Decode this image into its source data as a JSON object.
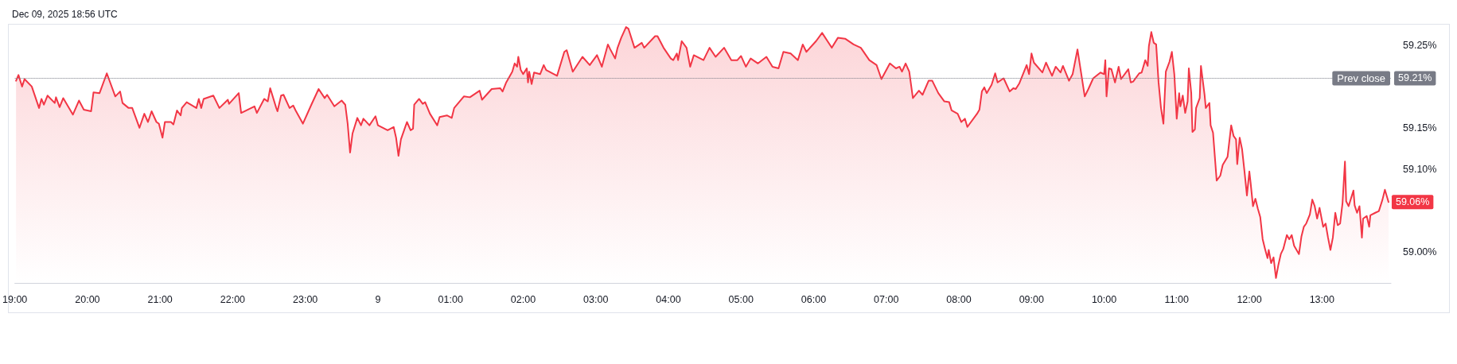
{
  "chart_data": {
    "type": "area",
    "title": "Dec 09, 2025 18:56 UTC",
    "color": "#f23645",
    "x": [
      "2025-12-08T19:01",
      "2025-12-08T19:03",
      "2025-12-08T19:06",
      "2025-12-08T19:08",
      "2025-12-08T19:14",
      "2025-12-08T19:20",
      "2025-12-08T19:22",
      "2025-12-08T19:24",
      "2025-12-08T19:27",
      "2025-12-08T19:33",
      "2025-12-08T19:34",
      "2025-12-08T19:37",
      "2025-12-08T19:40",
      "2025-12-08T19:48",
      "2025-12-08T19:53",
      "2025-12-08T19:57",
      "2025-12-08T20:03",
      "2025-12-08T20:05",
      "2025-12-08T20:10",
      "2025-12-08T20:16",
      "2025-12-08T20:19",
      "2025-12-08T20:23",
      "2025-12-08T20:27",
      "2025-12-08T20:29",
      "2025-12-08T20:34",
      "2025-12-08T20:37",
      "2025-12-08T20:43",
      "2025-12-08T20:47",
      "2025-12-08T20:50",
      "2025-12-08T20:53",
      "2025-12-08T20:57",
      "2025-12-08T20:59",
      "2025-12-08T21:02",
      "2025-12-08T21:04",
      "2025-12-08T21:09",
      "2025-12-08T21:11",
      "2025-12-08T21:14",
      "2025-12-08T21:17",
      "2025-12-08T21:18",
      "2025-12-08T21:22",
      "2025-12-08T21:30",
      "2025-12-08T21:32",
      "2025-12-08T21:34",
      "2025-12-08T21:36",
      "2025-12-08T21:44",
      "2025-12-08T21:49",
      "2025-12-08T21:56",
      "2025-12-08T21:57",
      "2025-12-08T22:05",
      "2025-12-08T22:07",
      "2025-12-08T22:18",
      "2025-12-08T22:20",
      "2025-12-08T22:26",
      "2025-12-08T22:29",
      "2025-12-08T22:31",
      "2025-12-08T22:36",
      "2025-12-08T22:37",
      "2025-12-08T22:40",
      "2025-12-08T22:42",
      "2025-12-08T22:47",
      "2025-12-08T22:50",
      "2025-12-08T22:52",
      "2025-12-08T22:58",
      "2025-12-08T23:05",
      "2025-12-08T23:11",
      "2025-12-08T23:16",
      "2025-12-08T23:18",
      "2025-12-08T23:24",
      "2025-12-08T23:30",
      "2025-12-08T23:33",
      "2025-12-08T23:35",
      "2025-12-08T23:37",
      "2025-12-08T23:39",
      "2025-12-08T23:43",
      "2025-12-08T23:46",
      "2025-12-08T23:48",
      "2025-12-08T23:53",
      "2025-12-08T23:58",
      "2025-12-09T00:00",
      "2025-12-09T00:08",
      "2025-12-09T00:13",
      "2025-12-09T00:15",
      "2025-12-09T00:17",
      "2025-12-09T00:19",
      "2025-12-09T00:24",
      "2025-12-09T00:27",
      "2025-12-09T00:29",
      "2025-12-09T00:30",
      "2025-12-09T00:34",
      "2025-12-09T00:37",
      "2025-12-09T00:39",
      "2025-12-09T00:43",
      "2025-12-09T00:49",
      "2025-12-09T00:51",
      "2025-12-09T00:57",
      "2025-12-09T01:01",
      "2025-12-09T01:03",
      "2025-12-09T01:11",
      "2025-12-09T01:16",
      "2025-12-09T01:24",
      "2025-12-09T01:26",
      "2025-12-09T01:34",
      "2025-12-09T01:41",
      "2025-12-09T01:43",
      "2025-12-09T01:46",
      "2025-12-09T01:51",
      "2025-12-09T01:53",
      "2025-12-09T01:55",
      "2025-12-09T01:56",
      "2025-12-09T01:58",
      "2025-12-09T02:00",
      "2025-12-09T02:03",
      "2025-12-09T02:04",
      "2025-12-09T02:05",
      "2025-12-09T02:07",
      "2025-12-09T02:09",
      "2025-12-09T02:14",
      "2025-12-09T02:17",
      "2025-12-09T02:19",
      "2025-12-09T02:28",
      "2025-12-09T02:34",
      "2025-12-09T02:36",
      "2025-12-09T02:41",
      "2025-12-09T02:49",
      "2025-12-09T02:55",
      "2025-12-09T03:01",
      "2025-12-09T03:05",
      "2025-12-09T03:10",
      "2025-12-09T03:12",
      "2025-12-09T03:16",
      "2025-12-09T03:18",
      "2025-12-09T03:21",
      "2025-12-09T03:25",
      "2025-12-09T03:27",
      "2025-12-09T03:32",
      "2025-12-09T03:38",
      "2025-12-09T03:40",
      "2025-12-09T03:49",
      "2025-12-09T03:51",
      "2025-12-09T03:56",
      "2025-12-09T04:02",
      "2025-12-09T04:04",
      "2025-12-09T04:07",
      "2025-12-09T04:08",
      "2025-12-09T04:11",
      "2025-12-09T04:15",
      "2025-12-09T04:18",
      "2025-12-09T04:21",
      "2025-12-09T04:29",
      "2025-12-09T04:34",
      "2025-12-09T04:39",
      "2025-12-09T04:46",
      "2025-12-09T04:52",
      "2025-12-09T04:57",
      "2025-12-09T05:00",
      "2025-12-09T05:04",
      "2025-12-09T05:08",
      "2025-12-09T05:14",
      "2025-12-09T05:21",
      "2025-12-09T05:26",
      "2025-12-09T05:31",
      "2025-12-09T05:35",
      "2025-12-09T05:41",
      "2025-12-09T05:47",
      "2025-12-09T05:51",
      "2025-12-09T05:54",
      "2025-12-09T06:02",
      "2025-12-09T06:07",
      "2025-12-09T06:15",
      "2025-12-09T06:20",
      "2025-12-09T06:26",
      "2025-12-09T06:33",
      "2025-12-09T06:39",
      "2025-12-09T06:46",
      "2025-12-09T06:52",
      "2025-12-09T06:56",
      "2025-12-09T07:03",
      "2025-12-09T07:08",
      "2025-12-09T07:11",
      "2025-12-09T07:13",
      "2025-12-09T07:16",
      "2025-12-09T07:19",
      "2025-12-09T07:22",
      "2025-12-09T07:27",
      "2025-12-09T07:30",
      "2025-12-09T07:35",
      "2025-12-09T07:38",
      "2025-12-09T07:43",
      "2025-12-09T07:48",
      "2025-12-09T07:52",
      "2025-12-09T07:54",
      "2025-12-09T07:59",
      "2025-12-09T08:02",
      "2025-12-09T08:05",
      "2025-12-09T08:07",
      "2025-12-09T08:15",
      "2025-12-09T08:17",
      "2025-12-09T08:19",
      "2025-12-09T08:21",
      "2025-12-09T08:23",
      "2025-12-09T08:27",
      "2025-12-09T08:30",
      "2025-12-09T08:32",
      "2025-12-09T08:37",
      "2025-12-09T08:42",
      "2025-12-09T08:45",
      "2025-12-09T08:47",
      "2025-12-09T08:50",
      "2025-12-09T08:56",
      "2025-12-09T08:58",
      "2025-12-09T09:00",
      "2025-12-09T09:02",
      "2025-12-09T09:09",
      "2025-12-09T09:12",
      "2025-12-09T09:17",
      "2025-12-09T09:20",
      "2025-12-09T09:24",
      "2025-12-09T09:26",
      "2025-12-09T09:31",
      "2025-12-09T09:34",
      "2025-12-09T09:38",
      "2025-12-09T09:40",
      "2025-12-09T09:44",
      "2025-12-09T09:47",
      "2025-12-09T09:51",
      "2025-12-09T09:57",
      "2025-12-09T10:00",
      "2025-12-09T10:01",
      "2025-12-09T10:02",
      "2025-12-09T10:04",
      "2025-12-09T10:06",
      "2025-12-09T10:09",
      "2025-12-09T10:12",
      "2025-12-09T10:14",
      "2025-12-09T10:20",
      "2025-12-09T10:22",
      "2025-12-09T10:24",
      "2025-12-09T10:29",
      "2025-12-09T10:31",
      "2025-12-09T10:34",
      "2025-12-09T10:36",
      "2025-12-09T10:37",
      "2025-12-09T10:39",
      "2025-12-09T10:41",
      "2025-12-09T10:43",
      "2025-12-09T10:45",
      "2025-12-09T10:47",
      "2025-12-09T10:49",
      "2025-12-09T10:51",
      "2025-12-09T10:54",
      "2025-12-09T10:56",
      "2025-12-09T10:58",
      "2025-12-09T11:00",
      "2025-12-09T11:02",
      "2025-12-09T11:03",
      "2025-12-09T11:05",
      "2025-12-09T11:07",
      "2025-12-09T11:09",
      "2025-12-09T11:10",
      "2025-12-09T11:12",
      "2025-12-09T11:13",
      "2025-12-09T11:15",
      "2025-12-09T11:16",
      "2025-12-09T11:19",
      "2025-12-09T11:20",
      "2025-12-09T11:23",
      "2025-12-09T11:24",
      "2025-12-09T11:27",
      "2025-12-09T11:28",
      "2025-12-09T11:30",
      "2025-12-09T11:33",
      "2025-12-09T11:36",
      "2025-12-09T11:38",
      "2025-12-09T11:42",
      "2025-12-09T11:45",
      "2025-12-09T11:47",
      "2025-12-09T11:49",
      "2025-12-09T11:50",
      "2025-12-09T11:52",
      "2025-12-09T11:54",
      "2025-12-09T11:56",
      "2025-12-09T11:58",
      "2025-12-09T12:00",
      "2025-12-09T12:01",
      "2025-12-09T12:03",
      "2025-12-09T12:05",
      "2025-12-09T12:07",
      "2025-12-09T12:09",
      "2025-12-09T12:11",
      "2025-12-09T12:13",
      "2025-12-09T12:15",
      "2025-12-09T12:16",
      "2025-12-09T12:18",
      "2025-12-09T12:20",
      "2025-12-09T12:22",
      "2025-12-09T12:24",
      "2025-12-09T12:26",
      "2025-12-09T12:28",
      "2025-12-09T12:31",
      "2025-12-09T12:33",
      "2025-12-09T12:35",
      "2025-12-09T12:37",
      "2025-12-09T12:41",
      "2025-12-09T12:43",
      "2025-12-09T12:45",
      "2025-12-09T12:47",
      "2025-12-09T12:50",
      "2025-12-09T12:52",
      "2025-12-09T12:54",
      "2025-12-09T12:56",
      "2025-12-09T12:58",
      "2025-12-09T13:01",
      "2025-12-09T13:03",
      "2025-12-09T13:05",
      "2025-12-09T13:07",
      "2025-12-09T13:09",
      "2025-12-09T13:11",
      "2025-12-09T13:13",
      "2025-12-09T13:15",
      "2025-12-09T13:17",
      "2025-12-09T13:19",
      "2025-12-09T13:20",
      "2025-12-09T13:22",
      "2025-12-09T13:26",
      "2025-12-09T13:27",
      "2025-12-09T13:29",
      "2025-12-09T13:31",
      "2025-12-09T13:33",
      "2025-12-09T13:34",
      "2025-12-09T13:37",
      "2025-12-09T13:39",
      "2025-12-09T13:40",
      "2025-12-09T13:44",
      "2025-12-09T13:47",
      "2025-12-09T13:50",
      "2025-12-09T13:52",
      "2025-12-09T13:55"
    ],
    "values": [
      59.207,
      59.214,
      59.2,
      59.209,
      59.2,
      59.174,
      59.185,
      59.178,
      59.189,
      59.18,
      59.187,
      59.175,
      59.186,
      59.166,
      59.183,
      59.172,
      59.17,
      59.193,
      59.192,
      59.216,
      59.204,
      59.188,
      59.194,
      59.18,
      59.174,
      59.174,
      59.15,
      59.167,
      59.157,
      59.17,
      59.157,
      59.155,
      59.138,
      59.157,
      59.157,
      59.154,
      59.171,
      59.165,
      59.174,
      59.181,
      59.174,
      59.185,
      59.174,
      59.185,
      59.189,
      59.174,
      59.184,
      59.179,
      59.192,
      59.168,
      59.176,
      59.168,
      59.185,
      59.182,
      59.198,
      59.174,
      59.17,
      59.189,
      59.19,
      59.174,
      59.177,
      59.171,
      59.155,
      59.178,
      59.197,
      59.186,
      59.19,
      59.176,
      59.183,
      59.178,
      59.155,
      59.12,
      59.143,
      59.162,
      59.153,
      59.161,
      59.153,
      59.164,
      59.153,
      59.147,
      59.151,
      59.138,
      59.116,
      59.136,
      59.157,
      59.147,
      59.149,
      59.178,
      59.185,
      59.179,
      59.181,
      59.167,
      59.153,
      59.163,
      59.165,
      59.162,
      59.174,
      59.188,
      59.187,
      59.195,
      59.184,
      59.197,
      59.198,
      59.194,
      59.205,
      59.218,
      59.228,
      59.224,
      59.236,
      59.22,
      59.215,
      59.222,
      59.205,
      59.218,
      59.203,
      59.217,
      59.215,
      59.226,
      59.22,
      59.213,
      59.242,
      59.244,
      59.218,
      59.236,
      59.226,
      59.238,
      59.224,
      59.251,
      59.245,
      59.234,
      59.247,
      59.259,
      59.272,
      59.27,
      59.247,
      59.253,
      59.247,
      59.261,
      59.261,
      59.247,
      59.234,
      59.232,
      59.24,
      59.232,
      59.255,
      59.247,
      59.224,
      59.238,
      59.232,
      59.247,
      59.236,
      59.247,
      59.232,
      59.232,
      59.237,
      59.224,
      59.234,
      59.228,
      59.236,
      59.224,
      59.222,
      59.242,
      59.24,
      59.232,
      59.251,
      59.242,
      59.255,
      59.265,
      59.247,
      59.259,
      59.258,
      59.251,
      59.247,
      59.232,
      59.226,
      59.209,
      59.228,
      59.222,
      59.224,
      59.218,
      59.228,
      59.218,
      59.186,
      59.195,
      59.19,
      59.207,
      59.207,
      59.192,
      59.182,
      59.181,
      59.171,
      59.167,
      59.157,
      59.161,
      59.151,
      59.167,
      59.172,
      59.194,
      59.199,
      59.192,
      59.202,
      59.216,
      59.205,
      59.21,
      59.194,
      59.198,
      59.197,
      59.204,
      59.226,
      59.215,
      59.24,
      59.229,
      59.217,
      59.229,
      59.213,
      59.224,
      59.217,
      59.225,
      59.207,
      59.215,
      59.245,
      59.226,
      59.188,
      59.197,
      59.21,
      59.217,
      59.215,
      59.232,
      59.188,
      59.222,
      59.221,
      59.205,
      59.224,
      59.209,
      59.221,
      59.205,
      59.206,
      59.216,
      59.217,
      59.232,
      59.225,
      59.249,
      59.266,
      59.253,
      59.251,
      59.205,
      59.174,
      59.155,
      59.218,
      59.23,
      59.242,
      59.215,
      59.161,
      59.192,
      59.176,
      59.189,
      59.168,
      59.182,
      59.222,
      59.192,
      59.145,
      59.148,
      59.174,
      59.186,
      59.225,
      59.19,
      59.174,
      59.18,
      59.153,
      59.144,
      59.086,
      59.092,
      59.105,
      59.115,
      59.153,
      59.14,
      59.136,
      59.106,
      59.138,
      59.124,
      59.097,
      59.068,
      59.097,
      59.084,
      59.055,
      59.064,
      59.052,
      59.042,
      59.015,
      59.003,
      58.992,
      59.002,
      58.986,
      58.993,
      58.968,
      58.984,
      58.997,
      59.003,
      59.02,
      59.015,
      59.02,
      59.007,
      58.997,
      59.018,
      59.03,
      59.034,
      59.045,
      59.063,
      59.055,
      59.04,
      59.053,
      59.03,
      59.034,
      59.017,
      59.002,
      59.017,
      59.047,
      59.032,
      59.034,
      59.059,
      59.109,
      59.061,
      59.055,
      59.074,
      59.056,
      59.047,
      59.055,
      59.017,
      59.04,
      59.043,
      59.03,
      59.044,
      59.047,
      59.049,
      59.063,
      59.075,
      59.06
    ],
    "xlim": [
      "2025-12-08T19:00",
      "2025-12-09T13:57"
    ],
    "xticks": [
      {
        "value": "2025-12-08T19:00",
        "label": "19:00"
      },
      {
        "value": "2025-12-08T20:00",
        "label": "20:00"
      },
      {
        "value": "2025-12-08T21:00",
        "label": "21:00"
      },
      {
        "value": "2025-12-08T22:00",
        "label": "22:00"
      },
      {
        "value": "2025-12-08T23:00",
        "label": "23:00"
      },
      {
        "value": "2025-12-09T00:00",
        "label": "9"
      },
      {
        "value": "2025-12-09T01:00",
        "label": "01:00"
      },
      {
        "value": "2025-12-09T02:00",
        "label": "02:00"
      },
      {
        "value": "2025-12-09T03:00",
        "label": "03:00"
      },
      {
        "value": "2025-12-09T04:00",
        "label": "04:00"
      },
      {
        "value": "2025-12-09T05:00",
        "label": "05:00"
      },
      {
        "value": "2025-12-09T06:00",
        "label": "06:00"
      },
      {
        "value": "2025-12-09T07:00",
        "label": "07:00"
      },
      {
        "value": "2025-12-09T08:00",
        "label": "08:00"
      },
      {
        "value": "2025-12-09T09:00",
        "label": "09:00"
      },
      {
        "value": "2025-12-09T10:00",
        "label": "10:00"
      },
      {
        "value": "2025-12-09T11:00",
        "label": "11:00"
      },
      {
        "value": "2025-12-09T12:00",
        "label": "12:00"
      },
      {
        "value": "2025-12-09T13:00",
        "label": "13:00"
      }
    ],
    "ylim": [
      58.962,
      59.275
    ],
    "yticks": [
      {
        "value": 59,
        "label": "59.00%"
      },
      {
        "value": 59.1,
        "label": "59.10%"
      },
      {
        "value": 59.15,
        "label": "59.15%"
      },
      {
        "value": 59.25,
        "label": "59.25%"
      }
    ],
    "ref_lines": [
      {
        "axis": "y",
        "value": 59.21,
        "label": "Prev close",
        "color": "#787b86",
        "line_style": "dotted"
      }
    ],
    "annotations": [
      {
        "text": "59.21%",
        "x": "2025-12-09T13:57",
        "y": 59.21
      },
      {
        "text": "59.06%",
        "x": "2025-12-09T13:55",
        "y": 59.06
      }
    ],
    "grid": false
  }
}
